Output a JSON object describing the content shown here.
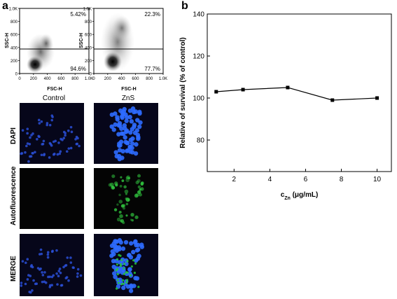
{
  "panels": {
    "a_label": "a",
    "b_label": "b"
  },
  "flow": [
    {
      "y_label": "SSC-H",
      "x_label": "FSC-H",
      "upper_pct": "5.42%",
      "lower_pct": "94.6%",
      "gate_y": 400,
      "y_ticks": [
        "0",
        "200",
        "400",
        "600",
        "800",
        "1.0K"
      ],
      "x_ticks": [
        "0",
        "200",
        "400",
        "600",
        "800",
        "1.0K"
      ]
    },
    {
      "y_label": "SSC-H",
      "x_label": "FSC-H",
      "upper_pct": "22.3%",
      "lower_pct": "77.7%",
      "gate_y": 400,
      "y_ticks": [
        "0",
        "200",
        "400",
        "600",
        "800",
        "1.0K"
      ],
      "x_ticks": [
        "0",
        "200",
        "400",
        "600",
        "800",
        "1.0K"
      ]
    }
  ],
  "micrographs": {
    "columns": [
      "Control",
      "ZnS"
    ],
    "rows": [
      "DAPI",
      "Autofluorescence",
      "MERGE"
    ]
  },
  "chart_data": {
    "type": "line",
    "x": [
      1,
      2.5,
      5,
      7.5,
      10
    ],
    "series": [
      {
        "values": [
          103,
          104,
          105,
          99,
          100
        ]
      }
    ],
    "xlabel_main": "c",
    "xlabel_sub": "Zn",
    "xlabel_unit": " (μg/mL)",
    "ylabel": "Relative of survival (% of control)",
    "xlim": [
      0.5,
      10.8
    ],
    "ylim": [
      65,
      140
    ],
    "x_ticks": [
      2,
      4,
      6,
      8,
      10
    ],
    "y_ticks": [
      80,
      100,
      120,
      140
    ],
    "grid": false,
    "marker": "square",
    "color": "#000000"
  }
}
